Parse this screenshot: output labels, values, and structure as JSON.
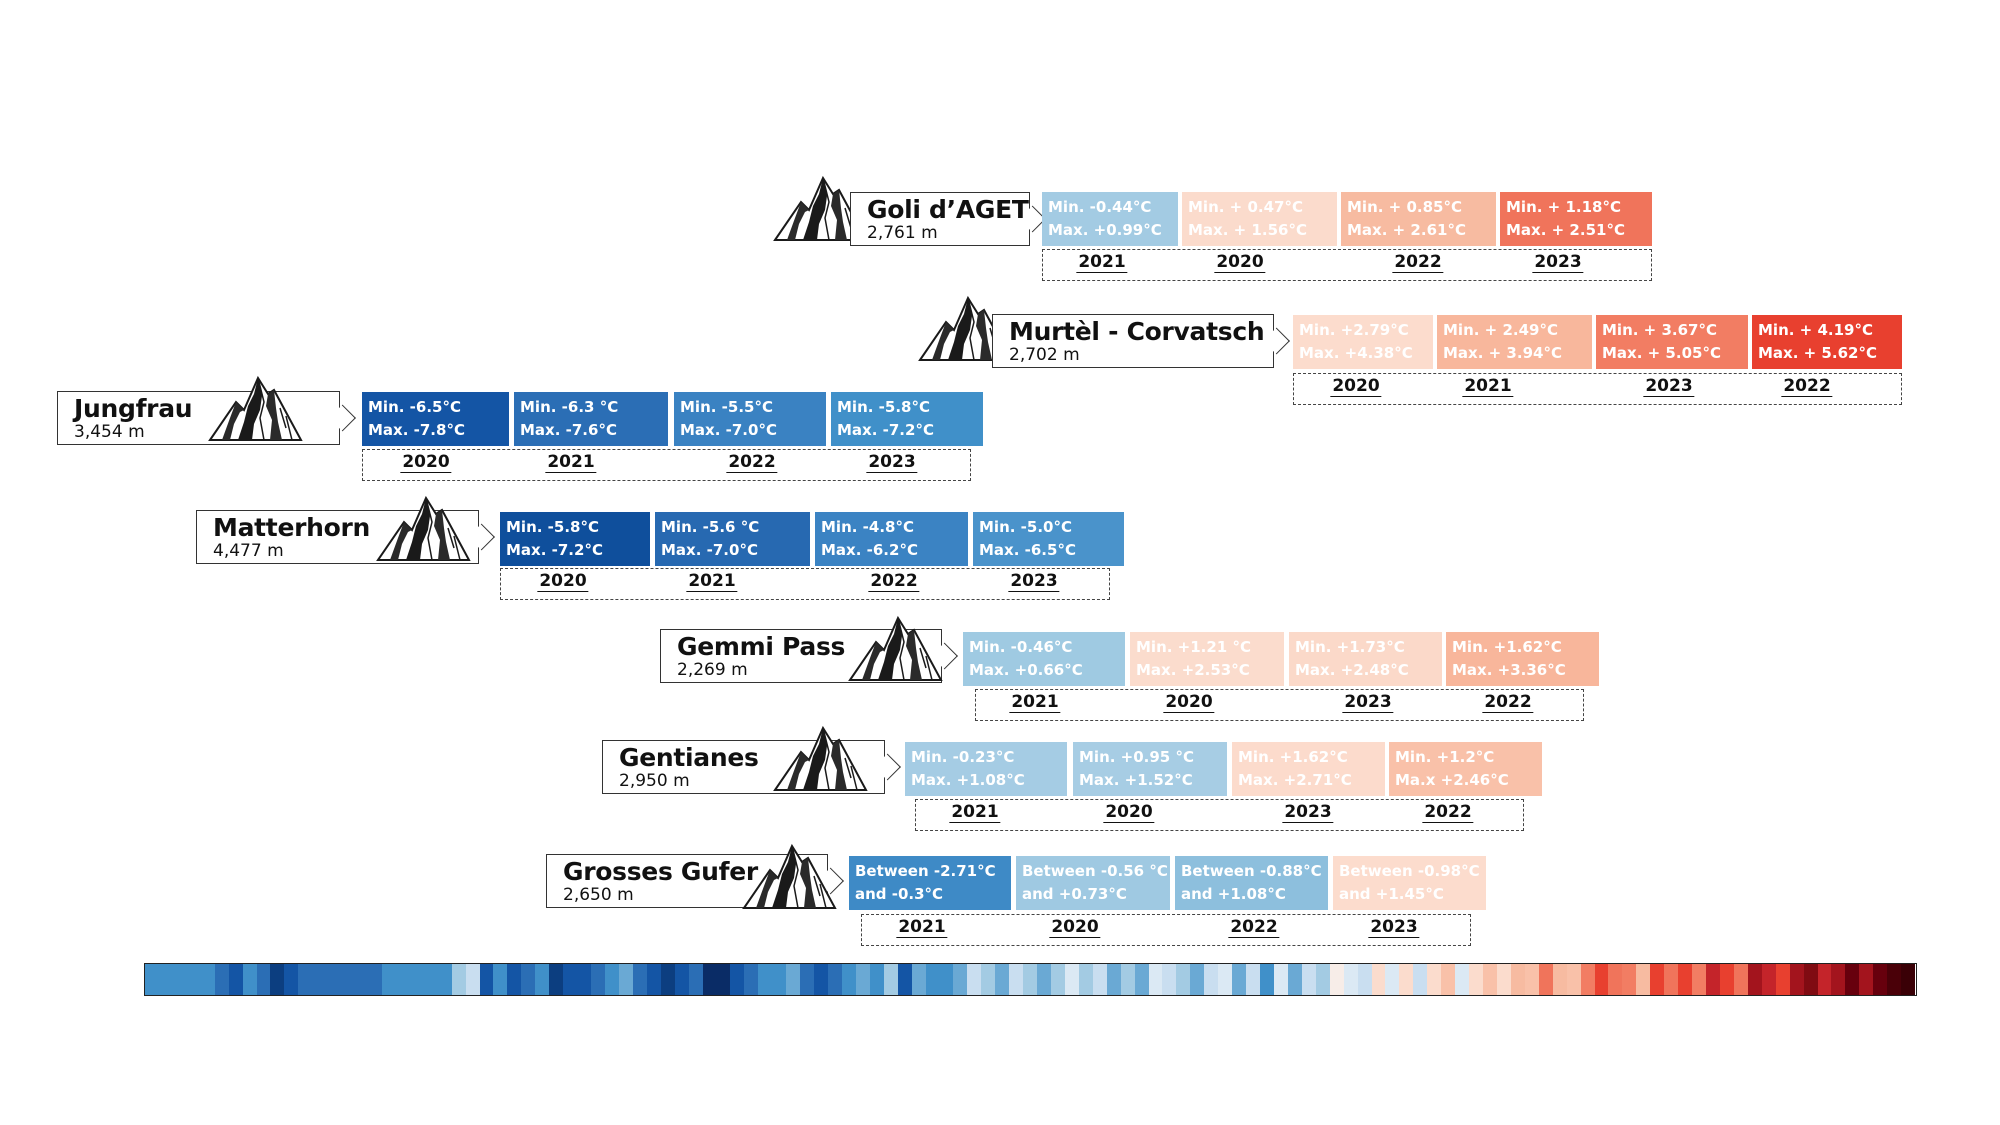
{
  "stations": [
    {
      "name": "Goli d’AGET",
      "altitude": "2,761 m",
      "cells": [
        {
          "line1": "Min. -0.44°C",
          "line2": "Max. +0.99°C",
          "color": "#a3cbe3",
          "text_color": "#ffffff"
        },
        {
          "line1": "Min. + 0.47°C",
          "line2": "Max. + 1.56°C",
          "color": "#fbdbcc",
          "text_color": "#ffffff"
        },
        {
          "line1": "Min. + 0.85°C",
          "line2": "Max. + 2.61°C",
          "color": "#f7bba1",
          "text_color": "#ffffff"
        },
        {
          "line1": "Min. + 1.18°C",
          "line2": "Max. + 2.51°C",
          "color": "#f0745b",
          "text_color": "#ffffff"
        }
      ],
      "years": [
        "2021",
        "2020",
        "2022",
        "2023"
      ]
    },
    {
      "name": "Murtèl - Corvatsch",
      "altitude": "2,702 m",
      "cells": [
        {
          "line1": "Min. +2.79°C",
          "line2": "Max. +4.38°C",
          "color": "#fcdccd",
          "text_color": "#ffffff"
        },
        {
          "line1": "Min. + 2.49°C",
          "line2": "Max. + 3.94°C",
          "color": "#f8b79c",
          "text_color": "#ffffff"
        },
        {
          "line1": "Min. + 3.67°C",
          "line2": "Max. + 5.05°C",
          "color": "#f27d63",
          "text_color": "#ffffff"
        },
        {
          "line1": "Min. + 4.19°C",
          "line2": "Max. + 5.62°C",
          "color": "#e8402f",
          "text_color": "#ffffff"
        }
      ],
      "years": [
        "2020",
        "2021",
        "2023",
        "2022"
      ]
    },
    {
      "name": "Jungfrau",
      "altitude": "3,454 m",
      "cells": [
        {
          "line1": "Min. -6.5°C",
          "line2": "Max. -7.8°C",
          "color": "#1455a5",
          "text_color": "#ffffff"
        },
        {
          "line1": "Min. -6.3 °C",
          "line2": "Max. -7.6°C",
          "color": "#2b6eb5",
          "text_color": "#ffffff"
        },
        {
          "line1": "Min. -5.5°C",
          "line2": "Max. -7.0°C",
          "color": "#3a82c2",
          "text_color": "#ffffff"
        },
        {
          "line1": "Min. -5.8°C",
          "line2": "Max. -7.2°C",
          "color": "#4090c9",
          "text_color": "#ffffff"
        }
      ],
      "years": [
        "2020",
        "2021",
        "2022",
        "2023"
      ]
    },
    {
      "name": "Matterhorn",
      "altitude": "4,477 m",
      "cells": [
        {
          "line1": "Min. -5.8°C",
          "line2": "Max. -7.2°C",
          "color": "#0f4f9c",
          "text_color": "#ffffff"
        },
        {
          "line1": "Min. -5.6 °C",
          "line2": "Max. -7.0°C",
          "color": "#2769b1",
          "text_color": "#ffffff"
        },
        {
          "line1": "Min. -4.8°C",
          "line2": "Max. -6.2°C",
          "color": "#3b83c3",
          "text_color": "#ffffff"
        },
        {
          "line1": "Min. -5.0°C",
          "line2": "Max. -6.5°C",
          "color": "#4a93cb",
          "text_color": "#ffffff"
        }
      ],
      "years": [
        "2020",
        "2021",
        "2022",
        "2023"
      ]
    },
    {
      "name": "Gemmi Pass",
      "altitude": "2,269 m",
      "cells": [
        {
          "line1": "Min. -0.46°C",
          "line2": "Max. +0.66°C",
          "color": "#9fcae2",
          "text_color": "#ffffff"
        },
        {
          "line1": "Min. +1.21 °C",
          "line2": "Max. +2.53°C",
          "color": "#fbdccd",
          "text_color": "#ffffff"
        },
        {
          "line1": "Min. +1.73°C",
          "line2": "Max. +2.48°C",
          "color": "#fbd9c9",
          "text_color": "#ffffff"
        },
        {
          "line1": "Min. +1.62°C",
          "line2": "Max. +3.36°C",
          "color": "#f8b69b",
          "text_color": "#ffffff"
        }
      ],
      "years": [
        "2021",
        "2020",
        "2023",
        "2022"
      ]
    },
    {
      "name": "Gentianes",
      "altitude": "2,950 m",
      "cells": [
        {
          "line1": "Min. -0.23°C",
          "line2": "Max. +1.08°C",
          "color": "#a5cce4",
          "text_color": "#ffffff"
        },
        {
          "line1": "Min. +0.95 °C",
          "line2": "Max. +1.52°C",
          "color": "#a7cde4",
          "text_color": "#ffffff"
        },
        {
          "line1": "Min. +1.62°C",
          "line2": "Max. +2.71°C",
          "color": "#fcdbcc",
          "text_color": "#ffffff"
        },
        {
          "line1": "Min. +1.2°C",
          "line2": "Ma.x +2.46°C",
          "color": "#f9c1a9",
          "text_color": "#ffffff"
        }
      ],
      "years": [
        "2021",
        "2020",
        "2023",
        "2022"
      ]
    },
    {
      "name": "Grosses Gufer",
      "altitude": "2,650 m",
      "cells": [
        {
          "line1": "Between -2.71°C",
          "line2": "and -0.3°C",
          "color": "#3e8ac6",
          "text_color": "#ffffff"
        },
        {
          "line1": "Between -0.56 °C",
          "line2": "and +0.73°C",
          "color": "#9fc9e2",
          "text_color": "#ffffff"
        },
        {
          "line1": "Between -0.88°C",
          "line2": "and +1.08°C",
          "color": "#8dbfdd",
          "text_color": "#ffffff"
        },
        {
          "line1": "Between -0.98°C",
          "line2": "and +1.45°C",
          "color": "#fcdccd",
          "text_color": "#ffffff"
        }
      ],
      "years": [
        "2021",
        "2020",
        "2022",
        "2023"
      ]
    }
  ],
  "warming_stripes": {
    "colors": [
      "#4090c9",
      "#4090c9",
      "#4090c9",
      "#4090c9",
      "#4090c9",
      "#2b6eb5",
      "#1455a5",
      "#4090c9",
      "#2b6eb5",
      "#0c3e80",
      "#1455a5",
      "#2b6eb5",
      "#2b6eb5",
      "#2b6eb5",
      "#2b6eb5",
      "#2b6eb5",
      "#2b6eb5",
      "#4090c9",
      "#4090c9",
      "#4090c9",
      "#4090c9",
      "#4090c9",
      "#a3cbe3",
      "#c9def0",
      "#1455a5",
      "#4090c9",
      "#1455a5",
      "#2b6eb5",
      "#4090c9",
      "#0c3e80",
      "#1455a5",
      "#1455a5",
      "#2b6eb5",
      "#4090c9",
      "#6aa9d4",
      "#2b6eb5",
      "#1455a5",
      "#0c3e80",
      "#1455a5",
      "#2b6eb5",
      "#0a2c66",
      "#0a2c66",
      "#1455a5",
      "#2b6eb5",
      "#4090c9",
      "#4090c9",
      "#6aa9d4",
      "#2b6eb5",
      "#1455a5",
      "#2b6eb5",
      "#4090c9",
      "#6aa9d4",
      "#4090c9",
      "#a3cbe3",
      "#1455a5",
      "#6aa9d4",
      "#4090c9",
      "#4090c9",
      "#6aa9d4",
      "#c9def0",
      "#a3cbe3",
      "#6aa9d4",
      "#c9def0",
      "#a3cbe3",
      "#6aa9d4",
      "#a3cbe3",
      "#dbe9f4",
      "#a3cbe3",
      "#c9def0",
      "#6aa9d4",
      "#a3cbe3",
      "#6aa9d4",
      "#dbe9f4",
      "#c9def0",
      "#a3cbe3",
      "#6aa9d4",
      "#c9def0",
      "#dbe9f4",
      "#6aa9d4",
      "#c9def0",
      "#4090c9",
      "#dbe9f4",
      "#6aa9d4",
      "#c9def0",
      "#a3cbe3",
      "#f7ede8",
      "#dbe9f4",
      "#c9def0",
      "#fbdccd",
      "#dbe9f4",
      "#fbdccd",
      "#c9def0",
      "#fbdccd",
      "#f9c1a9",
      "#dbe9f4",
      "#fbdccd",
      "#f9c1a9",
      "#fbdccd",
      "#f7bba1",
      "#f9c1a9",
      "#f0745b",
      "#f7bba1",
      "#f9c1a9",
      "#f27d63",
      "#e8402f",
      "#f0745b",
      "#f27d63",
      "#f7bba1",
      "#e8402f",
      "#f0745b",
      "#e8402f",
      "#f27d63",
      "#c4242a",
      "#e8402f",
      "#f0745b",
      "#a3141d",
      "#c4242a",
      "#e8402f",
      "#a3141d",
      "#800b12",
      "#c4242a",
      "#a3141d",
      "#67000d",
      "#a3141d",
      "#67000d",
      "#4a0008",
      "#3a0006"
    ]
  }
}
